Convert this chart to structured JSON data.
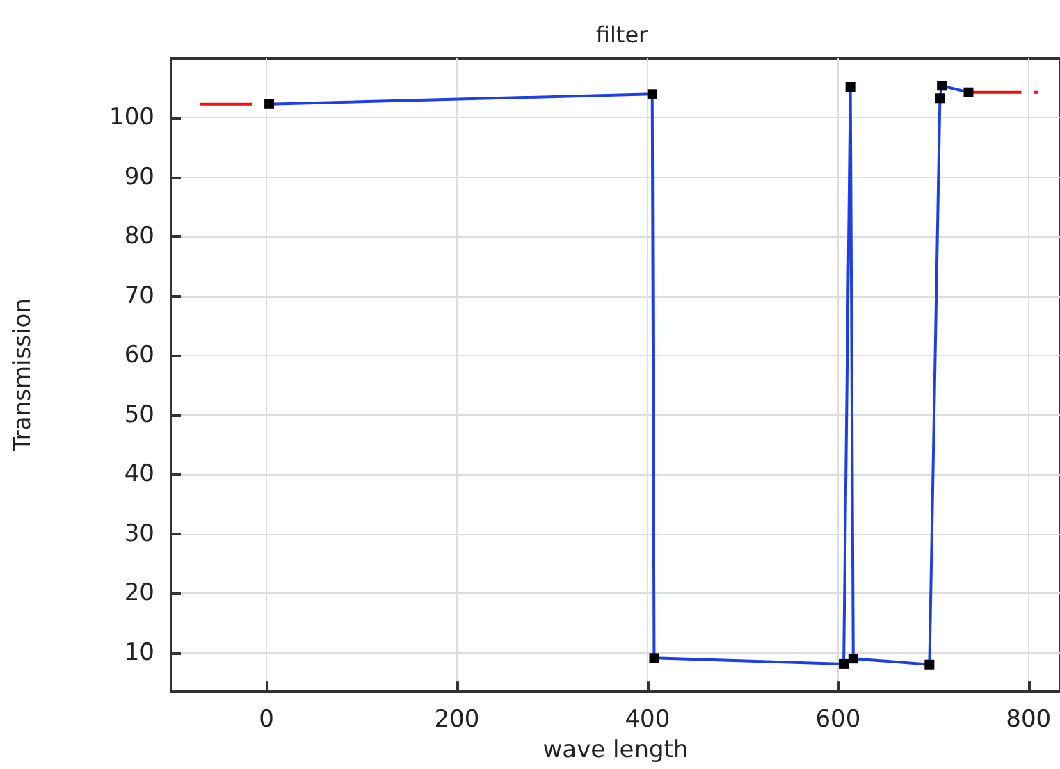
{
  "chart_data": {
    "type": "line",
    "title": "filter",
    "xlabel": "wave length",
    "ylabel": "Transmission",
    "xlim": [
      -100,
      833
    ],
    "xticks": [
      0,
      200,
      400,
      600,
      800
    ],
    "ylim": [
      3.5,
      110
    ],
    "yticks": [
      10,
      20,
      30,
      40,
      50,
      60,
      70,
      80,
      90,
      100
    ],
    "grid": true,
    "series": [
      {
        "color": "#1f3fe6",
        "marker": "square",
        "line_style": "solid",
        "x": [
          3,
          405,
          407,
          606,
          613,
          616,
          696,
          707,
          709,
          737
        ],
        "values": [
          102.3,
          104,
          9.1,
          8.1,
          105.2,
          9,
          8,
          103.3,
          105.4,
          104.3
        ]
      },
      {
        "color": "#ee1111",
        "marker": "none",
        "line_style": "dashed",
        "x": [
          -70,
          -15
        ],
        "values": [
          102.3,
          102.3
        ]
      },
      {
        "color": "#ee1111",
        "marker": "none",
        "line_style": "dashed",
        "x": [
          737,
          810
        ],
        "values": [
          104.3,
          104.3
        ]
      }
    ]
  }
}
